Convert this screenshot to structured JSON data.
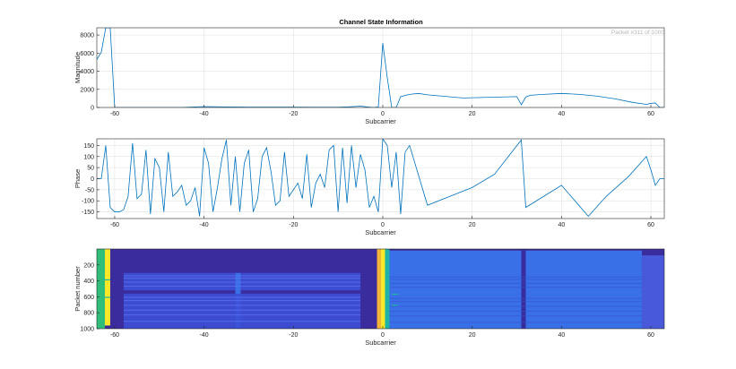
{
  "figure": {
    "title": "Channel State Information",
    "annotation": "Packet #311 of 1000"
  },
  "chart_data": [
    {
      "type": "line",
      "ylabel": "Magnitude",
      "xlabel": "Subcarrier",
      "xlim": [
        -64,
        63
      ],
      "ylim": [
        0,
        8800
      ],
      "grid": true,
      "xticks": [
        -60,
        -40,
        -20,
        0,
        20,
        40,
        60
      ],
      "yticks": [
        0,
        2000,
        4000,
        6000,
        8000
      ],
      "color": "#0072BD",
      "x": [
        -64,
        -63,
        -62,
        -61,
        -60,
        -58,
        -55,
        -50,
        -45,
        -40,
        -35,
        -30,
        -25,
        -20,
        -15,
        -10,
        -7,
        -5,
        -3,
        -2,
        -1,
        0,
        1,
        2,
        3,
        4,
        6,
        8,
        10,
        14,
        18,
        22,
        26,
        30,
        31,
        32,
        33,
        36,
        40,
        44,
        48,
        52,
        56,
        59,
        60,
        61,
        62,
        63
      ],
      "y": [
        5300,
        6100,
        8800,
        8800,
        0,
        0,
        0,
        0,
        0,
        100,
        60,
        30,
        30,
        30,
        20,
        20,
        90,
        150,
        30,
        0,
        60,
        7100,
        3300,
        0,
        0,
        1200,
        1450,
        1550,
        1400,
        1220,
        1050,
        1100,
        1150,
        1200,
        300,
        1150,
        1350,
        1450,
        1550,
        1450,
        1250,
        950,
        550,
        350,
        450,
        500,
        0,
        0
      ]
    },
    {
      "type": "line",
      "ylabel": "Phase",
      "xlabel": "Subcarrier",
      "xlim": [
        -64,
        63
      ],
      "ylim": [
        -180,
        180
      ],
      "grid": true,
      "xticks": [
        -60,
        -40,
        -20,
        0,
        20,
        40,
        60
      ],
      "yticks": [
        -150,
        -100,
        -50,
        0,
        50,
        100,
        150
      ],
      "color": "#0072BD",
      "x": [
        -64,
        -63,
        -62,
        -61,
        -60,
        -59,
        -58,
        -57,
        -56,
        -55,
        -54,
        -53,
        -52,
        -51,
        -50,
        -49,
        -48,
        -47,
        -46,
        -45,
        -44,
        -43,
        -42,
        -41,
        -40,
        -39,
        -38,
        -37,
        -36,
        -35,
        -34,
        -33,
        -32,
        -31,
        -30,
        -29,
        -28,
        -27,
        -26,
        -25,
        -24,
        -23,
        -22,
        -21,
        -20,
        -19,
        -18,
        -17,
        -16,
        -15,
        -14,
        -13,
        -12,
        -11,
        -10,
        -9,
        -8,
        -7,
        -6,
        -5,
        -4,
        -3,
        -2,
        -1,
        0,
        1,
        2,
        3,
        4,
        5,
        6,
        10,
        15,
        20,
        25,
        31,
        32,
        40,
        46,
        50,
        55,
        59,
        60,
        61,
        62,
        63
      ],
      "y": [
        0,
        0,
        150,
        -130,
        -150,
        -150,
        -140,
        -80,
        160,
        -90,
        -70,
        130,
        -160,
        90,
        50,
        -150,
        120,
        -80,
        -60,
        -30,
        -120,
        -100,
        -40,
        -170,
        140,
        70,
        -150,
        -40,
        90,
        175,
        -120,
        100,
        -150,
        70,
        130,
        -150,
        -90,
        100,
        140,
        30,
        -120,
        -100,
        120,
        -80,
        -50,
        -20,
        -90,
        110,
        -130,
        -20,
        20,
        -40,
        130,
        150,
        -150,
        140,
        -110,
        150,
        -40,
        110,
        40,
        -130,
        -80,
        -150,
        180,
        150,
        -40,
        120,
        -160,
        120,
        150,
        -120,
        -80,
        -40,
        20,
        175,
        -130,
        -30,
        -170,
        -80,
        10,
        100,
        40,
        -30,
        0,
        0
      ]
    },
    {
      "type": "heatmap",
      "ylabel": "Packet number",
      "xlabel": "Subcarrier",
      "xlim": [
        -64,
        63
      ],
      "ylim": [
        0,
        1000
      ],
      "xticks": [
        -60,
        -40,
        -20,
        0,
        20,
        40,
        60
      ],
      "yticks": [
        200,
        400,
        600,
        800,
        1000
      ],
      "colormap": "parula",
      "colors": {
        "background": "#3a2c9c",
        "low": "#3d4fd6",
        "mid": "#3a78f0",
        "teal": "#1fb3a6",
        "green": "#2fbe7a",
        "yellow": "#f7e82a",
        "orange": "#f4b43a"
      }
    }
  ]
}
